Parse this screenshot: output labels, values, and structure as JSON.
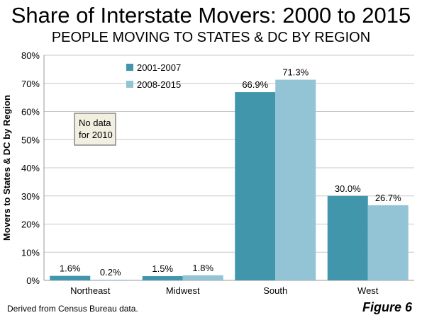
{
  "title": "Share of Interstate Movers: 2000 to 2015",
  "subtitle": "PEOPLE MOVING TO STATES & DC BY REGION",
  "source": "Derived from Census Bureau data.",
  "figure_label": "Figure 6",
  "note_lines": [
    "No data",
    "for 2010"
  ],
  "colors": {
    "series1": "#4196ac",
    "series2": "#93c4d5",
    "grid": "#c8c8c8",
    "note_bg": "#f1efe0"
  },
  "chart_data": {
    "type": "bar",
    "categories": [
      "Northeast",
      "Midwest",
      "South",
      "West"
    ],
    "series": [
      {
        "name": "2001-2007",
        "values": [
          1.6,
          1.5,
          66.9,
          30.0
        ],
        "labels": [
          "1.6%",
          "1.5%",
          "66.9%",
          "30.0%"
        ]
      },
      {
        "name": "2008-2015",
        "values": [
          0.2,
          1.8,
          71.3,
          26.7
        ],
        "labels": [
          "0.2%",
          "1.8%",
          "71.3%",
          "26.7%"
        ]
      }
    ],
    "yticks": [
      0,
      10,
      20,
      30,
      40,
      50,
      60,
      70,
      80
    ],
    "ytick_labels": [
      "0%",
      "10%",
      "20%",
      "30%",
      "40%",
      "50%",
      "60%",
      "70%",
      "80%"
    ],
    "ylabel": "Movers to States & DC by Region",
    "xlabel": "",
    "ylim": [
      0,
      80
    ],
    "grid": true,
    "legend_position": "top-left"
  }
}
